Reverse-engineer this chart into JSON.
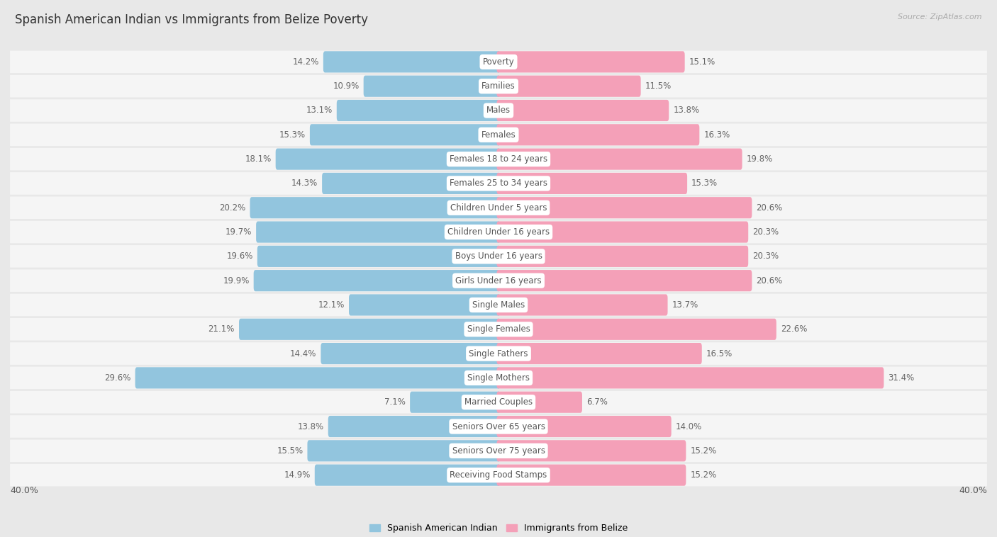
{
  "title": "Spanish American Indian vs Immigrants from Belize Poverty",
  "source": "Source: ZipAtlas.com",
  "categories": [
    "Poverty",
    "Families",
    "Males",
    "Females",
    "Females 18 to 24 years",
    "Females 25 to 34 years",
    "Children Under 5 years",
    "Children Under 16 years",
    "Boys Under 16 years",
    "Girls Under 16 years",
    "Single Males",
    "Single Females",
    "Single Fathers",
    "Single Mothers",
    "Married Couples",
    "Seniors Over 65 years",
    "Seniors Over 75 years",
    "Receiving Food Stamps"
  ],
  "left_values": [
    14.2,
    10.9,
    13.1,
    15.3,
    18.1,
    14.3,
    20.2,
    19.7,
    19.6,
    19.9,
    12.1,
    21.1,
    14.4,
    29.6,
    7.1,
    13.8,
    15.5,
    14.9
  ],
  "right_values": [
    15.1,
    11.5,
    13.8,
    16.3,
    19.8,
    15.3,
    20.6,
    20.3,
    20.3,
    20.6,
    13.7,
    22.6,
    16.5,
    31.4,
    6.7,
    14.0,
    15.2,
    15.2
  ],
  "left_color": "#92c5de",
  "right_color": "#f4a0b8",
  "left_label": "Spanish American Indian",
  "right_label": "Immigrants from Belize",
  "xlim": 40.0,
  "bg_color": "#e8e8e8",
  "row_color": "#f5f5f5",
  "title_fontsize": 12,
  "cat_fontsize": 8.5,
  "val_fontsize": 8.5,
  "bar_height": 0.58,
  "pill_color": "#ffffff",
  "pill_fontcolor": "#555555",
  "val_color": "#666666"
}
